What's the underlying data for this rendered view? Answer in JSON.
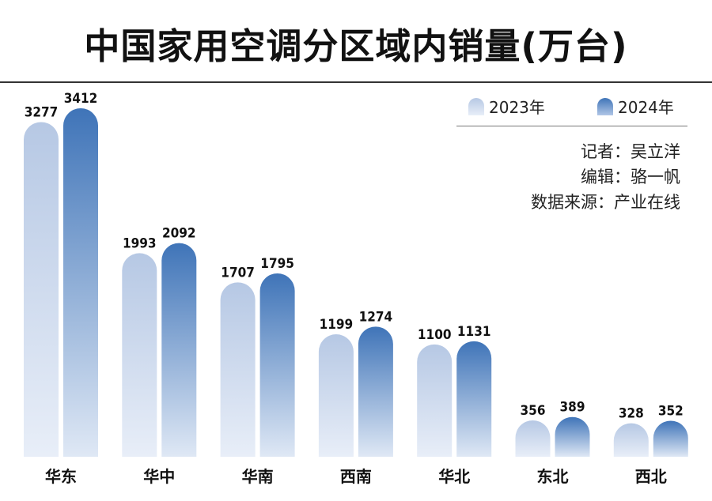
{
  "chart_data": {
    "type": "bar",
    "title": "中国家用空调分区域内销量(万台)",
    "categories": [
      "华东",
      "华中",
      "华南",
      "西南",
      "华北",
      "东北",
      "西北"
    ],
    "series": [
      {
        "name": "2023年",
        "values": [
          3277,
          1993,
          1707,
          1199,
          1100,
          356,
          328
        ],
        "color_top": "#b6c8e4",
        "color_bottom": "#e8eef8"
      },
      {
        "name": "2024年",
        "values": [
          3412,
          2092,
          1795,
          1274,
          1131,
          389,
          352
        ],
        "color_top": "#3f74b8",
        "color_bottom": "#dfe8f5"
      }
    ],
    "xlabel": "",
    "ylabel": "",
    "ylim": [
      0,
      3412
    ],
    "legend": "top-right",
    "grid": false
  },
  "credits": {
    "reporter": "记者：吴立洋",
    "editor": "编辑：骆一帆",
    "source": "数据来源：产业在线"
  }
}
